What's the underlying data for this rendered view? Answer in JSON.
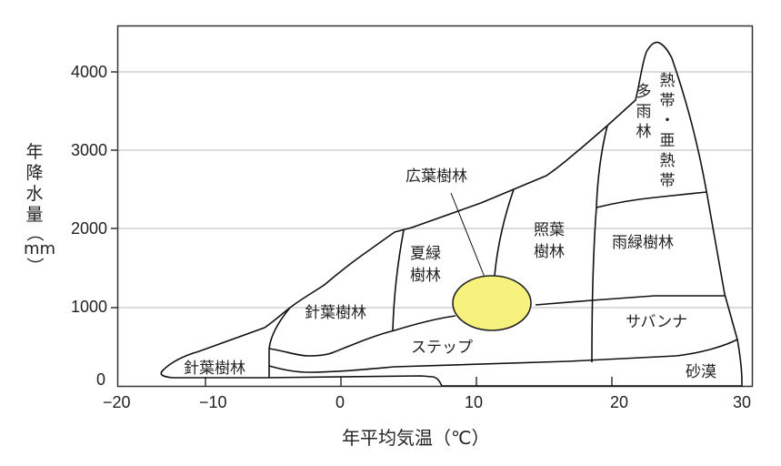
{
  "chart_data": {
    "type": "diagram",
    "title": "",
    "xlabel": "年平均気温（℃）",
    "ylabel_chars": [
      "年",
      "降",
      "水",
      "量",
      "（",
      "mm",
      "）"
    ],
    "xlim": [
      -20,
      30
    ],
    "ylim": [
      0,
      4500
    ],
    "x_ticks": [
      "−20",
      "−10",
      "0",
      "10",
      "20",
      "30"
    ],
    "y_ticks": [
      "4000",
      "3000",
      "2000",
      "1000",
      "0"
    ],
    "highlight_color": "#f7f27e",
    "regions": {
      "tropical_rainforest": [
        "多",
        "雨",
        "林"
      ],
      "tropical_subtropical": [
        "熱",
        "帯",
        "・",
        "亜",
        "熱",
        "帯"
      ],
      "broadleaf_callout": "広葉樹林",
      "summergreen": [
        "夏緑",
        "樹林"
      ],
      "laurel": [
        "照葉",
        "樹林"
      ],
      "raingreen": "雨緑樹林",
      "conifer_upper": "針葉樹林",
      "conifer_lower": "針葉樹林",
      "savanna": "サバンナ",
      "steppe": "ステップ",
      "desert": "砂漠"
    }
  }
}
